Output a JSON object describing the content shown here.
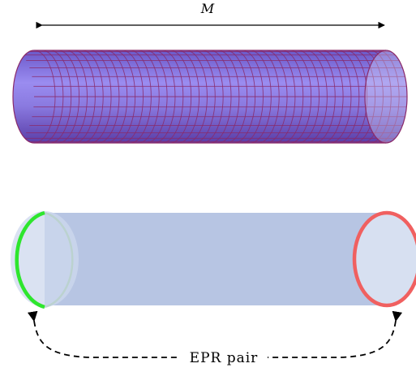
{
  "labels": {
    "length": "M",
    "pair": "EPR pair"
  },
  "grid": {
    "axial_divisions": 44,
    "circumferential_divisions": 14
  },
  "colors": {
    "tube_fill": "#8c7ae6",
    "tube_mesh": "#8a2a6a",
    "band_fill": "#b7c5e3",
    "left_mouth": "#2ee62e",
    "right_mouth": "#f06060",
    "mouth_fill": "#cdd8ee",
    "arrows": "#000000"
  }
}
